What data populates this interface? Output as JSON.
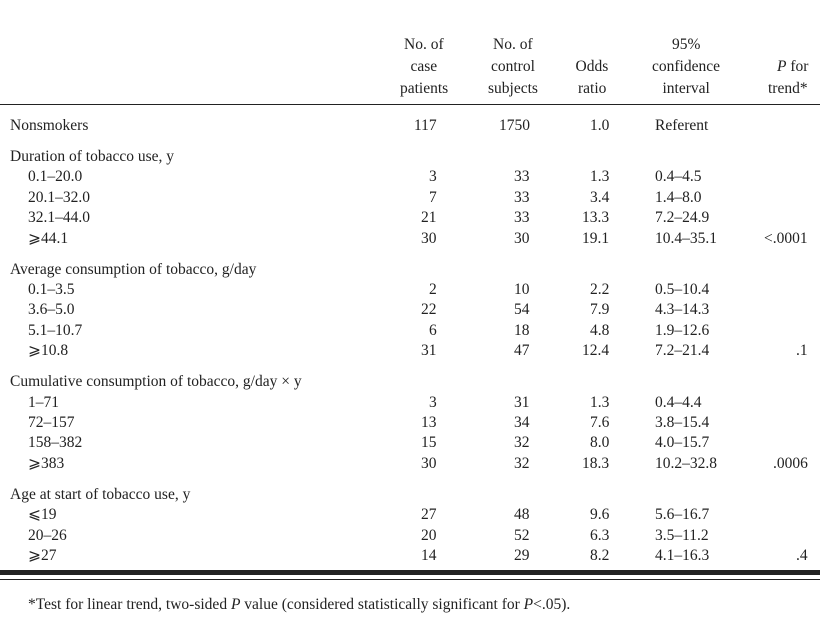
{
  "header": {
    "columns": [
      [
        [
          {
            "text": "No. of"
          }
        ],
        [
          {
            "text": "case"
          }
        ],
        [
          {
            "text": "patients"
          }
        ]
      ],
      [
        [
          {
            "text": "No. of"
          }
        ],
        [
          {
            "text": "control"
          }
        ],
        [
          {
            "text": "subjects"
          }
        ]
      ],
      [
        [
          {
            "text": "Odds"
          }
        ],
        [
          {
            "text": "ratio"
          }
        ]
      ],
      [
        [
          {
            "text": "95%"
          }
        ],
        [
          {
            "text": "confidence"
          }
        ],
        [
          {
            "text": "interval"
          }
        ]
      ],
      [
        [
          {
            "text": "P",
            "italic": true
          },
          {
            "text": " for"
          }
        ],
        [
          {
            "text": "trend*"
          }
        ]
      ]
    ]
  },
  "reference_row": [
    "Nonsmokers",
    "117",
    "1750",
    "1.0",
    "Referent",
    ""
  ],
  "sections": [
    {
      "title": "Duration of tobacco use, y",
      "rows": [
        [
          "0.1–20.0",
          "3",
          "33",
          "1.3",
          "0.4–4.5",
          ""
        ],
        [
          "20.1–32.0",
          "7",
          "33",
          "3.4",
          "1.4–8.0",
          ""
        ],
        [
          "32.1–44.0",
          "21",
          "33",
          "13.3",
          "7.2–24.9",
          ""
        ],
        [
          "⩾44.1",
          "30",
          "30",
          "19.1",
          "10.4–35.1",
          "<.0001"
        ]
      ]
    },
    {
      "title": "Average consumption of tobacco, g/day",
      "rows": [
        [
          "0.1–3.5",
          "2",
          "10",
          "2.2",
          "0.5–10.4",
          ""
        ],
        [
          "3.6–5.0",
          "22",
          "54",
          "7.9",
          "4.3–14.3",
          ""
        ],
        [
          "5.1–10.7",
          "6",
          "18",
          "4.8",
          "1.9–12.6",
          ""
        ],
        [
          "⩾10.8",
          "31",
          "47",
          "12.4",
          "7.2–21.4",
          ".1"
        ]
      ]
    },
    {
      "title": "Cumulative consumption of tobacco, g/day × y",
      "rows": [
        [
          "1–71",
          "3",
          "31",
          "1.3",
          "0.4–4.4",
          ""
        ],
        [
          "72–157",
          "13",
          "34",
          "7.6",
          "3.8–15.4",
          ""
        ],
        [
          "158–382",
          "15",
          "32",
          "8.0",
          "4.0–15.7",
          ""
        ],
        [
          "⩾383",
          "30",
          "32",
          "18.3",
          "10.2–32.8",
          ".0006"
        ]
      ]
    },
    {
      "title": "Age at start of tobacco use, y",
      "rows": [
        [
          "⩽19",
          "27",
          "48",
          "9.6",
          "5.6–16.7",
          ""
        ],
        [
          "20–26",
          "20",
          "52",
          "6.3",
          "3.5–11.2",
          ""
        ],
        [
          "⩾27",
          "14",
          "29",
          "8.2",
          "4.1–16.3",
          ".4"
        ]
      ]
    }
  ],
  "footnote": [
    {
      "text": "*Test for linear trend, two-sided "
    },
    {
      "text": "P",
      "italic": true
    },
    {
      "text": " value (considered statistically significant for "
    },
    {
      "text": "P",
      "italic": true
    },
    {
      "text": "<.05)."
    }
  ]
}
